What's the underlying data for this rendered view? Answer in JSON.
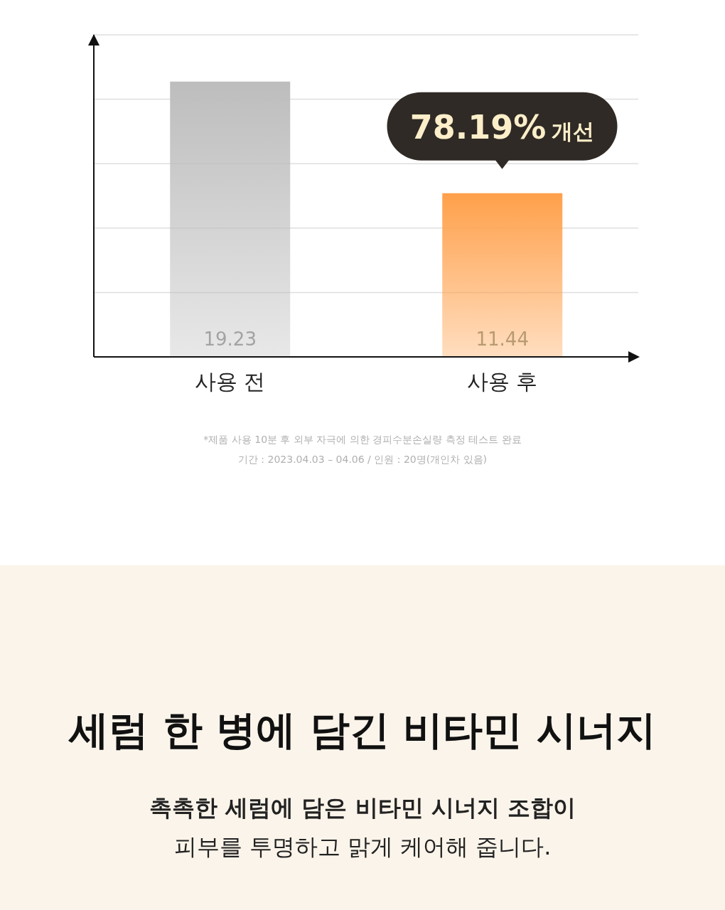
{
  "chart_data": {
    "type": "bar",
    "categories": [
      "사용 전",
      "사용 후"
    ],
    "values": [
      19.23,
      11.44
    ],
    "colors": [
      "#bdbdbd",
      "#ffa04a"
    ],
    "data_labels": true,
    "ylim": [
      0,
      22.5
    ],
    "yticks": [
      {
        "value": 0,
        "label": null
      },
      {
        "value": 4.5,
        "label": null
      },
      {
        "value": 9,
        "label": null
      },
      {
        "value": 13.5,
        "label": null
      },
      {
        "value": 18,
        "label": null
      },
      {
        "value": 22.5,
        "label": null
      }
    ],
    "grid": "y",
    "annotations": [
      {
        "text": "78.19% 개선",
        "x": "사용 후",
        "y": 11.44
      },
      "*제품 사용 10분 후 외부 자극에 의한 경피수분손실량 측정 테스트 완료",
      "기간 : 2023.04.03 – 04.06 / 인원 : 20명(개인차 있음)",
      "세럼 한 병에 담긴 비타민 시너지",
      "촉촉한 세럼에 담은 비타민 시너지 조합이",
      "피부를 투명하고 맑게 케어해 줍니다."
    ]
  }
}
